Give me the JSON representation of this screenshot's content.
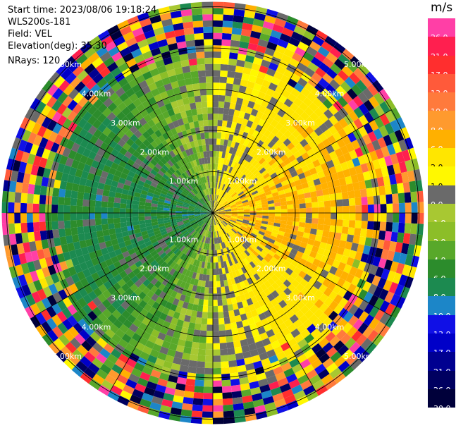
{
  "header": {
    "start_time": "Start time: 2023/08/06 19:18:24",
    "instrument": "WLS200s-181",
    "field": "Field: VEL",
    "elevation": "Elevation(deg): 35.30",
    "nrays": "NRays: 120"
  },
  "colorbar": {
    "unit": "m/s",
    "ticks": [
      "26.0",
      "21.0",
      "17.0",
      "13.0",
      "10.0",
      "8.0",
      "6.0",
      "2.0",
      "1.0",
      "0.0",
      "-1.0",
      "-2.0",
      "-4.0",
      "-6.0",
      "-8.0",
      "-10.0",
      "-13.0",
      "-17.0",
      "-21.0",
      "-26.0",
      "-30.0"
    ],
    "colors": [
      "#ff3fa6",
      "#ff1f4f",
      "#ff2e2e",
      "#ff5a3a",
      "#ff7a3c",
      "#ff9a2e",
      "#ffb000",
      "#ffe600",
      "#fff800",
      "#6a6a6a",
      "#a8c832",
      "#8cbe28",
      "#58a82a",
      "#2c8c2c",
      "#1c8a50",
      "#1c86c8",
      "#1010e6",
      "#0000c8",
      "#000090",
      "#000060",
      "#00003a"
    ]
  },
  "chart_data": {
    "type": "heatmap",
    "projection": "polar (PPI)",
    "title": "Start time: 2023/08/06 19:18:24",
    "field": "VEL",
    "units": "m/s",
    "elevation_deg": 35.3,
    "nrays": 120,
    "range_rings_km": [
      1.0,
      2.0,
      3.0,
      4.0,
      5.0
    ],
    "ring_labels": [
      "1.00km",
      "2.00km",
      "3.00km",
      "4.00km",
      "5.00km"
    ],
    "color_levels": [
      -30.0,
      -26.0,
      -21.0,
      -17.0,
      -13.0,
      -10.0,
      -8.0,
      -6.0,
      -4.0,
      -2.0,
      -1.0,
      0.0,
      1.0,
      2.0,
      6.0,
      8.0,
      10.0,
      13.0,
      17.0,
      21.0,
      26.0
    ],
    "approx_pattern": [
      {
        "sector": "east / toward +x",
        "range_km": [
          0,
          3
        ],
        "velocity_m_s": [
          1,
          10
        ],
        "description": "positive velocities (yellow to orange)"
      },
      {
        "sector": "west / toward -x",
        "range_km": [
          0,
          3
        ],
        "velocity_m_s": [
          -8,
          -1
        ],
        "description": "negative velocities (green)"
      },
      {
        "sector": "all",
        "range_km": [
          3.5,
          5.3
        ],
        "velocity_m_s": [
          -30,
          26
        ],
        "description": "noise, all colour classes"
      }
    ]
  }
}
